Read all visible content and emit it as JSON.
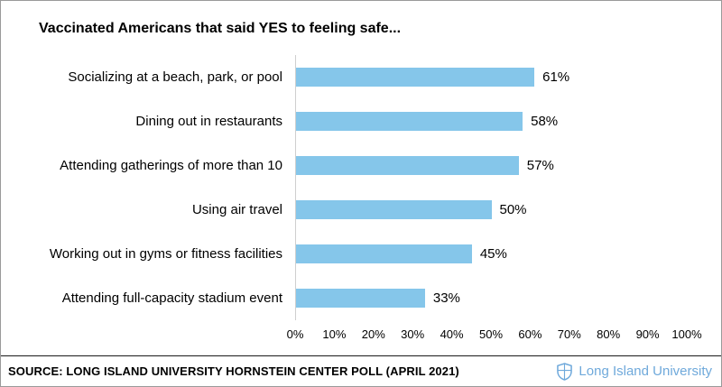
{
  "title": "Vaccinated Americans that said YES to feeling safe...",
  "chart_data": {
    "type": "bar",
    "orientation": "horizontal",
    "title": "Vaccinated Americans that said YES to feeling safe...",
    "categories": [
      "Socializing at a beach, park, or pool",
      "Dining out in restaurants",
      "Attending gatherings of more than 10",
      "Using air travel",
      "Working out in gyms or fitness facilities",
      "Attending full-capacity stadium event"
    ],
    "values": [
      61,
      58,
      57,
      50,
      45,
      33
    ],
    "value_suffix": "%",
    "x_ticks": [
      "0%",
      "10%",
      "20%",
      "30%",
      "40%",
      "50%",
      "60%",
      "70%",
      "80%",
      "90%",
      "100%"
    ],
    "xlim": [
      0,
      100
    ],
    "grid": "off",
    "legend": "none",
    "bar_color": "#85C6EA"
  },
  "footer": {
    "source": "SOURCE: LONG ISLAND UNIVERSITY HORNSTEIN CENTER POLL (APRIL 2021)",
    "logo_text": "Long Island University",
    "logo_color": "#6FA9DB"
  }
}
